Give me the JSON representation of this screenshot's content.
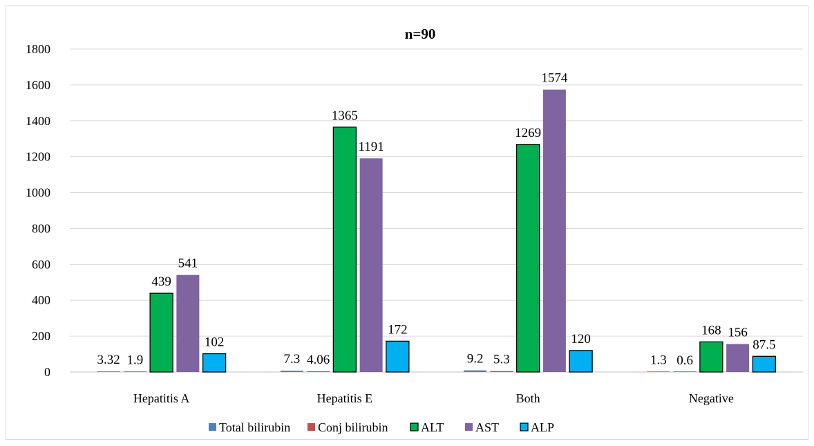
{
  "chart_data": {
    "type": "bar",
    "title": "n=90",
    "xlabel": "",
    "ylabel": "",
    "ylim": [
      0,
      1800
    ],
    "yticks": [
      0,
      200,
      400,
      600,
      800,
      1000,
      1200,
      1400,
      1600,
      1800
    ],
    "grid": true,
    "legend_position": "bottom",
    "categories": [
      "Hepatitis A",
      "Hepatitis E",
      "Both",
      "Negative"
    ],
    "series": [
      {
        "name": "Total bilirubin",
        "color": "#4f81bd",
        "outlined": false,
        "values": [
          3.32,
          7.3,
          9.2,
          1.3
        ],
        "labels": [
          "3.32",
          "7.3",
          "9.2",
          "1.3"
        ]
      },
      {
        "name": "Conj bilirubin",
        "color": "#c0504d",
        "outlined": false,
        "values": [
          1.9,
          4.06,
          5.3,
          0.6
        ],
        "labels": [
          "1.9",
          "4.06",
          "5.3",
          "0.6"
        ]
      },
      {
        "name": "ALT",
        "color": "#00b050",
        "outlined": true,
        "values": [
          439,
          1365,
          1269,
          168
        ],
        "labels": [
          "439",
          "1365",
          "1269",
          "168"
        ]
      },
      {
        "name": "AST",
        "color": "#8064a2",
        "outlined": false,
        "values": [
          541,
          1191,
          1574,
          156
        ],
        "labels": [
          "541",
          "1191",
          "1574",
          "156"
        ]
      },
      {
        "name": "ALP",
        "color": "#00b0f0",
        "outlined": true,
        "values": [
          102,
          172,
          120,
          87.5
        ],
        "labels": [
          "102",
          "172",
          "120",
          "87.5"
        ]
      }
    ]
  }
}
